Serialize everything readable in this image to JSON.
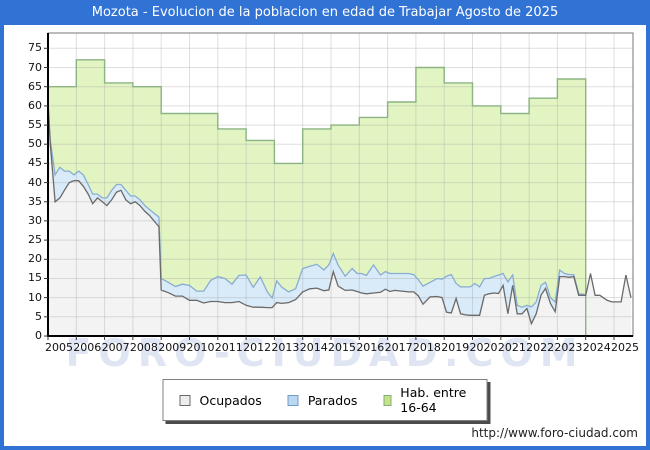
{
  "window": {
    "title": "Mozota - Evolucion de la poblacion en edad de Trabajar Agosto de 2025",
    "accent_color": "#3173d5"
  },
  "watermark_text": "FORO-CIUDAD.COM",
  "footer": {
    "url": "http://www.foro-ciudad.com"
  },
  "chart_data": {
    "type": "area",
    "title": "Mozota - Evolucion de la poblacion en edad de Trabajar Agosto de 2025",
    "xlabel": "",
    "ylabel": "",
    "xlim": [
      2005,
      2025.67
    ],
    "ylim": [
      0,
      79
    ],
    "grid": true,
    "legend_position": "bottom",
    "x_tick_labels": [
      "2005",
      "2006",
      "2007",
      "2008",
      "2009",
      "2010",
      "2011",
      "2012",
      "2013",
      "2014",
      "2015",
      "2016",
      "2017",
      "2018",
      "2019",
      "2020",
      "2021",
      "2022",
      "2023",
      "2024",
      "2025"
    ],
    "y_ticks": [
      0,
      5,
      10,
      15,
      20,
      25,
      30,
      35,
      40,
      45,
      50,
      55,
      60,
      65,
      70,
      75
    ],
    "legend": [
      {
        "label": "Ocupados",
        "fill": "#ededed",
        "stroke": "#6a6a6a"
      },
      {
        "label": "Parados",
        "fill": "#bcd7f1",
        "stroke": "#6f9cc9"
      },
      {
        "label": "Hab. entre 16-64",
        "fill": "#c3e387",
        "stroke": "#86ae74"
      }
    ],
    "series": {
      "hab_16_64": {
        "label": "Hab. entre 16-64",
        "style": {
          "fill": "#e3f4c3",
          "stroke": "#8cb383"
        },
        "years": [
          2005,
          2006,
          2007,
          2008,
          2009,
          2010,
          2011,
          2012,
          2013,
          2014,
          2015,
          2016,
          2017,
          2018,
          2019,
          2020,
          2021,
          2022,
          2023
        ],
        "values": [
          65,
          72,
          66,
          65,
          58,
          58,
          54,
          51,
          45,
          54,
          55,
          57,
          61,
          70,
          66,
          60,
          58,
          62,
          67
        ],
        "ends_at": 2024
      },
      "ocupados": {
        "label": "Ocupados",
        "style": {
          "fill": "#f3f3f3",
          "stroke": "#6a6a6a"
        },
        "x": [
          2005.0,
          2005.08,
          2005.25,
          2005.42,
          2005.58,
          2005.75,
          2005.92,
          2006.08,
          2006.25,
          2006.42,
          2006.58,
          2006.75,
          2006.92,
          2007.08,
          2007.25,
          2007.42,
          2007.58,
          2007.75,
          2007.92,
          2008.08,
          2008.25,
          2008.42,
          2008.58,
          2008.75,
          2008.92,
          2009.0,
          2009.25,
          2009.5,
          2009.75,
          2010.0,
          2010.25,
          2010.5,
          2010.75,
          2011.0,
          2011.25,
          2011.5,
          2011.75,
          2012.0,
          2012.25,
          2012.5,
          2012.75,
          2012.92,
          2013.08,
          2013.25,
          2013.5,
          2013.75,
          2014.0,
          2014.25,
          2014.5,
          2014.75,
          2014.92,
          2015.08,
          2015.25,
          2015.5,
          2015.75,
          2015.92,
          2016.08,
          2016.25,
          2016.5,
          2016.75,
          2016.92,
          2017.08,
          2017.25,
          2017.5,
          2017.75,
          2017.92,
          2018.08,
          2018.25,
          2018.5,
          2018.75,
          2018.92,
          2019.08,
          2019.25,
          2019.42,
          2019.58,
          2019.75,
          2019.92,
          2020.08,
          2020.25,
          2020.42,
          2020.58,
          2020.75,
          2020.92,
          2021.08,
          2021.25,
          2021.42,
          2021.58,
          2021.75,
          2021.92,
          2022.08,
          2022.25,
          2022.42,
          2022.58,
          2022.75,
          2022.92,
          2023.08,
          2023.25,
          2023.42,
          2023.58,
          2023.75,
          2023.92,
          2024.0,
          2024.17,
          2024.33,
          2024.5,
          2024.75,
          2024.92,
          2025.08,
          2025.25,
          2025.42,
          2025.6
        ],
        "values": [
          61,
          50,
          35,
          36,
          38,
          40,
          40.5,
          40.5,
          39,
          37,
          34.5,
          36,
          35,
          34,
          35.5,
          37.5,
          38,
          35.5,
          34.5,
          35,
          34,
          32.5,
          31.5,
          30,
          28.5,
          12,
          11.3,
          10.4,
          10.4,
          9.3,
          9.3,
          8.6,
          9,
          9,
          8.7,
          8.7,
          9,
          8,
          7.5,
          7.5,
          7.4,
          7.4,
          8.7,
          8.5,
          8.7,
          9.5,
          11.5,
          12.3,
          12.5,
          11.8,
          12,
          16.8,
          13,
          11.9,
          12,
          11.6,
          11.2,
          11,
          11.2,
          11.4,
          12.2,
          11.6,
          11.9,
          11.7,
          11.5,
          11.5,
          10.5,
          8.3,
          10.2,
          10.3,
          10,
          6.2,
          6,
          9.8,
          5.8,
          5.5,
          5.4,
          5.4,
          5.4,
          10.6,
          11,
          11.2,
          11.1,
          13.2,
          5.8,
          13.2,
          5.8,
          5.8,
          7.2,
          3.2,
          5.8,
          10.6,
          12.4,
          8.5,
          6.3,
          15.5,
          15.5,
          15.3,
          15.5,
          10.6,
          10.6,
          10.6,
          16.3,
          10.6,
          10.6,
          9.3,
          8.9,
          8.9,
          8.9,
          15.9,
          10
        ]
      },
      "parados": {
        "label": "Parados",
        "style": {
          "fill": "#d9eaf8",
          "stroke": "#88add2"
        },
        "stacked_on": "ocupados",
        "values": [
          0,
          1,
          7,
          8,
          5,
          3,
          1.5,
          2.5,
          3,
          2.5,
          2.5,
          1,
          1,
          2,
          2.5,
          2,
          1.5,
          2.5,
          2,
          1.5,
          1.5,
          1.5,
          1.5,
          2,
          2.5,
          3,
          2.7,
          2.5,
          3.1,
          3.9,
          2.4,
          3.1,
          5.5,
          6.5,
          6.3,
          4.8,
          6.8,
          7.9,
          5.2,
          7.9,
          4.1,
          2.5,
          5.7,
          4.3,
          2.8,
          2.8,
          6.1,
          5.9,
          6.2,
          5.4,
          6.5,
          4.7,
          5.5,
          3.7,
          5.6,
          4.7,
          5.1,
          4.8,
          7.3,
          4.5,
          4.6,
          4.7,
          4.4,
          4.6,
          4.8,
          4.5,
          4.2,
          4.7,
          3.8,
          4.7,
          4.8,
          9.4,
          10,
          3.9,
          7,
          7.3,
          7.4,
          8.3,
          7.4,
          4.4,
          4,
          4.3,
          4.8,
          3.1,
          8.3,
          2.7,
          2.2,
          1.7,
          0.8,
          4.4,
          3.1,
          2.6,
          1.6,
          1.5,
          2.6,
          1.7,
          0.8,
          0.7,
          0.5,
          0.4,
          0.3,
          0,
          0,
          0,
          0,
          0,
          0,
          0,
          0,
          0,
          0
        ],
        "visible_until": 2024
      }
    }
  }
}
